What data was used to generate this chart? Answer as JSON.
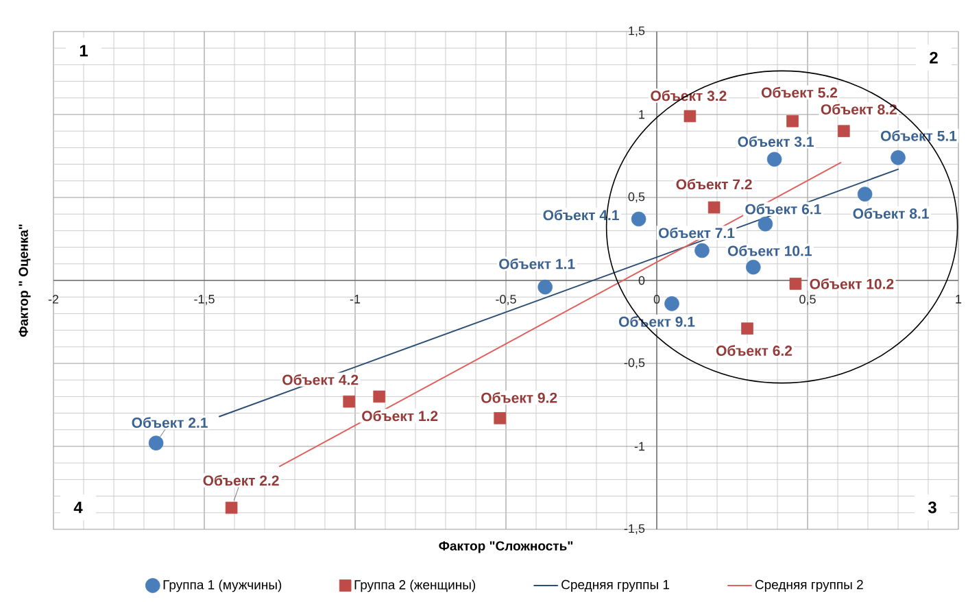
{
  "chart_data": {
    "type": "scatter",
    "xlabel": "Фактор \"Сложность\"",
    "ylabel": "Фактор \" Оценка\"",
    "xlim": [
      -2,
      1
    ],
    "ylim": [
      -1.5,
      1.5
    ],
    "xticks": [
      -2,
      {
        "value": -1.5,
        "label": "-1,5"
      },
      -1,
      {
        "value": -0.5,
        "label": "-0,5"
      },
      0,
      {
        "value": 0.5,
        "label": "0,5"
      },
      1
    ],
    "yticks": [
      {
        "value": -1.5,
        "label": "-1,5"
      },
      -1,
      {
        "value": -0.5,
        "label": "-0,5"
      },
      0,
      {
        "value": 0.5,
        "label": "0,5"
      },
      1,
      {
        "value": 1.5,
        "label": "1,5"
      }
    ],
    "grid": true,
    "legend": "bottom",
    "series": [
      {
        "name": "Группа 1 (мужчины)",
        "color": "#4a7ebb",
        "marker": "circle",
        "x": [
          -0.37,
          -1.66,
          0.39,
          -0.06,
          0.8,
          0.36,
          0.15,
          0.69,
          0.05,
          0.32
        ],
        "values": [
          -0.04,
          -0.98,
          0.73,
          0.37,
          0.74,
          0.34,
          0.18,
          0.52,
          -0.14,
          0.08
        ]
      },
      {
        "name": "Группа 2 (женщины)",
        "color": "#be4b48",
        "marker": "square",
        "x": [
          -0.92,
          -1.41,
          0.11,
          -1.02,
          0.45,
          0.3,
          0.19,
          0.62,
          -0.52,
          0.46
        ],
        "values": [
          -0.7,
          -1.37,
          0.99,
          -0.73,
          0.96,
          -0.29,
          0.44,
          0.9,
          -0.83,
          -0.02
        ]
      },
      {
        "name": "Средняя группы 1",
        "type": "line",
        "color": "#2c4d75",
        "marker": "none",
        "x": [
          -1.45,
          0.8
        ],
        "values": [
          -0.82,
          0.67
        ]
      },
      {
        "name": "Средняя группы 2",
        "type": "line",
        "color": "#e0605d",
        "marker": "none",
        "x": [
          -1.25,
          0.61
        ],
        "values": [
          -1.12,
          0.71
        ]
      }
    ],
    "annotations": [
      {
        "text": "Объект 1.1",
        "x": -0.37,
        "y": -0.04
      },
      {
        "text": "Объект 2.1",
        "x": -1.66,
        "y": -0.98
      },
      {
        "text": "Объект 3.1",
        "x": 0.39,
        "y": 0.73
      },
      {
        "text": "Объект 4.1",
        "x": -0.06,
        "y": 0.37
      },
      {
        "text": "Объект 5.1",
        "x": 0.8,
        "y": 0.74
      },
      {
        "text": "Объект 6.1",
        "x": 0.36,
        "y": 0.34
      },
      {
        "text": "Объект 7.1",
        "x": 0.15,
        "y": 0.18
      },
      {
        "text": "Объект 8.1",
        "x": 0.69,
        "y": 0.52
      },
      {
        "text": "Объект 9.1",
        "x": 0.05,
        "y": -0.14
      },
      {
        "text": "Объект 10.1",
        "x": 0.32,
        "y": 0.08
      },
      {
        "text": "Объект 1.2",
        "x": -0.92,
        "y": -0.7
      },
      {
        "text": "Объект 2.2",
        "x": -1.41,
        "y": -1.37
      },
      {
        "text": "Объект 3.2",
        "x": 0.11,
        "y": 0.99
      },
      {
        "text": "Объект 4.2",
        "x": -1.02,
        "y": -0.73
      },
      {
        "text": "Объект 5.2",
        "x": 0.45,
        "y": 0.96
      },
      {
        "text": "Объект 6.2",
        "x": 0.3,
        "y": -0.29
      },
      {
        "text": "Объект 7.2",
        "x": 0.19,
        "y": 0.44
      },
      {
        "text": "Объект 8.2",
        "x": 0.62,
        "y": 0.9
      },
      {
        "text": "Объект 9.2",
        "x": -0.52,
        "y": -0.83
      },
      {
        "text": "Объект 10.2",
        "x": 0.46,
        "y": -0.02
      },
      "1",
      "2",
      "3",
      "4"
    ]
  }
}
